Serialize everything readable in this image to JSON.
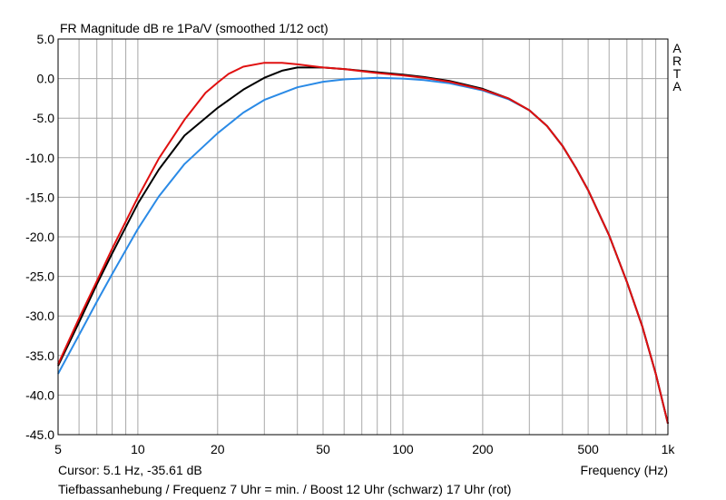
{
  "header": {
    "title": "FR Magnitude dB re 1Pa/V (smoothed 1/12 oct)",
    "logo_letters": [
      "A",
      "R",
      "T",
      "A"
    ]
  },
  "footer": {
    "cursor": "Cursor: 5.1 Hz, -35.61 dB",
    "caption": "Tiefbassanhebung / Frequenz 7 Uhr = min. / Boost 12 Uhr (schwarz) 17 Uhr (rot)"
  },
  "chart_data": {
    "type": "line",
    "title": "FR Magnitude dB re 1Pa/V (smoothed 1/12 oct)",
    "xlabel": "Frequency (Hz)",
    "ylabel": "",
    "xscale": "log",
    "xlim": [
      5,
      1000
    ],
    "ylim": [
      -45,
      5
    ],
    "grid": true,
    "x_tick_labels": [
      {
        "value": 5,
        "label": "5"
      },
      {
        "value": 10,
        "label": "10"
      },
      {
        "value": 20,
        "label": "20"
      },
      {
        "value": 50,
        "label": "50"
      },
      {
        "value": 100,
        "label": "100"
      },
      {
        "value": 200,
        "label": "200"
      },
      {
        "value": 500,
        "label": "500"
      },
      {
        "value": 1000,
        "label": "1k"
      }
    ],
    "y_tick_labels": [
      "5.0",
      "0.0",
      "-5.0",
      "-10.0",
      "-15.0",
      "-20.0",
      "-25.0",
      "-30.0",
      "-35.0",
      "-40.0",
      "-45.0"
    ],
    "series": [
      {
        "color": "#2a8ae6",
        "points": [
          [
            5,
            -37.3
          ],
          [
            6,
            -32.4
          ],
          [
            7,
            -28.2
          ],
          [
            8,
            -24.7
          ],
          [
            10,
            -19.0
          ],
          [
            12,
            -14.9
          ],
          [
            15,
            -10.8
          ],
          [
            20,
            -6.9
          ],
          [
            25,
            -4.3
          ],
          [
            30,
            -2.7
          ],
          [
            40,
            -1.1
          ],
          [
            50,
            -0.4
          ],
          [
            60,
            -0.1
          ],
          [
            80,
            0.1
          ],
          [
            100,
            0.0
          ],
          [
            120,
            -0.2
          ],
          [
            150,
            -0.6
          ],
          [
            200,
            -1.5
          ],
          [
            250,
            -2.6
          ],
          [
            300,
            -4.0
          ],
          [
            350,
            -6.0
          ],
          [
            400,
            -8.5
          ],
          [
            450,
            -11.3
          ],
          [
            500,
            -14.1
          ],
          [
            600,
            -19.8
          ],
          [
            700,
            -25.7
          ],
          [
            800,
            -31.3
          ],
          [
            900,
            -37.3
          ],
          [
            1000,
            -43.6
          ]
        ]
      },
      {
        "color": "#000000",
        "points": [
          [
            5,
            -36.3
          ],
          [
            6,
            -30.8
          ],
          [
            7,
            -26.0
          ],
          [
            8,
            -22.1
          ],
          [
            10,
            -15.8
          ],
          [
            12,
            -11.5
          ],
          [
            15,
            -7.2
          ],
          [
            20,
            -3.7
          ],
          [
            25,
            -1.4
          ],
          [
            30,
            0.1
          ],
          [
            35,
            1.0
          ],
          [
            40,
            1.4
          ],
          [
            50,
            1.4
          ],
          [
            60,
            1.2
          ],
          [
            80,
            0.8
          ],
          [
            100,
            0.5
          ],
          [
            120,
            0.2
          ],
          [
            150,
            -0.3
          ],
          [
            200,
            -1.3
          ],
          [
            250,
            -2.5
          ],
          [
            300,
            -4.0
          ],
          [
            350,
            -6.0
          ],
          [
            400,
            -8.5
          ],
          [
            450,
            -11.3
          ],
          [
            500,
            -14.1
          ],
          [
            600,
            -19.8
          ],
          [
            700,
            -25.7
          ],
          [
            800,
            -31.3
          ],
          [
            900,
            -37.3
          ],
          [
            1000,
            -43.6
          ]
        ]
      },
      {
        "color": "#e01010",
        "points": [
          [
            5,
            -36.1
          ],
          [
            6,
            -30.3
          ],
          [
            7,
            -25.6
          ],
          [
            8,
            -21.5
          ],
          [
            10,
            -15.0
          ],
          [
            12,
            -10.1
          ],
          [
            15,
            -5.2
          ],
          [
            18,
            -1.8
          ],
          [
            20,
            -0.5
          ],
          [
            22,
            0.6
          ],
          [
            25,
            1.5
          ],
          [
            30,
            2.0
          ],
          [
            35,
            2.0
          ],
          [
            40,
            1.8
          ],
          [
            50,
            1.4
          ],
          [
            60,
            1.2
          ],
          [
            80,
            0.7
          ],
          [
            100,
            0.4
          ],
          [
            120,
            0.1
          ],
          [
            150,
            -0.4
          ],
          [
            200,
            -1.4
          ],
          [
            250,
            -2.5
          ],
          [
            300,
            -4.0
          ],
          [
            350,
            -6.0
          ],
          [
            400,
            -8.5
          ],
          [
            450,
            -11.3
          ],
          [
            500,
            -14.1
          ],
          [
            600,
            -19.8
          ],
          [
            700,
            -25.7
          ],
          [
            800,
            -31.3
          ],
          [
            900,
            -37.3
          ],
          [
            1000,
            -43.6
          ]
        ]
      }
    ]
  }
}
